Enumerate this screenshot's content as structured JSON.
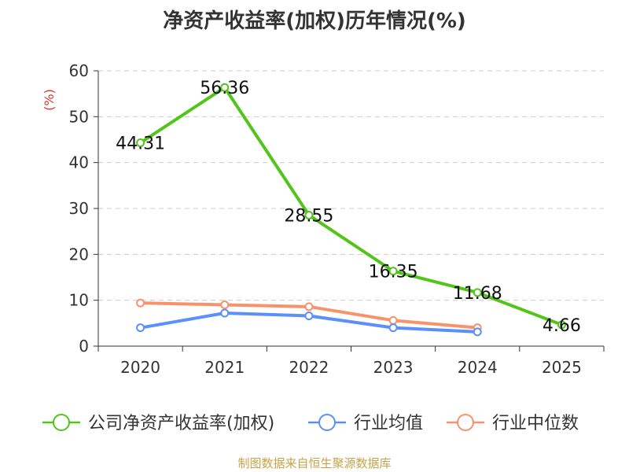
{
  "footer": {
    "source": "制图数据来自恒生聚源数据库"
  },
  "chart_data": {
    "type": "line",
    "title": "净资产收益率(加权)历年情况(%)",
    "ylabel": "(%)",
    "xlabel": "",
    "categories": [
      "2020",
      "2021",
      "2022",
      "2023",
      "2024",
      "2025"
    ],
    "ylim": [
      0,
      60
    ],
    "yticks": [
      "0",
      "10",
      "20",
      "30",
      "40",
      "50",
      "60"
    ],
    "grid": true,
    "legend_position": "bottom",
    "series": [
      {
        "name": "公司净资产收益率(加权)",
        "color": "#52c41a",
        "values": [
          44.31,
          56.36,
          28.55,
          16.35,
          11.68,
          4.66
        ],
        "labels": [
          "44.31",
          "56.36",
          "28.55",
          "16.35",
          "11.68",
          "4.66"
        ]
      },
      {
        "name": "行业均值",
        "color": "#5b8ff9",
        "values": [
          4.0,
          7.2,
          6.6,
          4.0,
          3.1,
          null
        ]
      },
      {
        "name": "行业中位数",
        "color": "#f7936a",
        "values": [
          9.4,
          9.0,
          8.6,
          5.6,
          4.0,
          null
        ]
      }
    ],
    "label_color": "#111111",
    "ylabel_color": "#e0302a",
    "footer_color": "#c8a24a"
  }
}
